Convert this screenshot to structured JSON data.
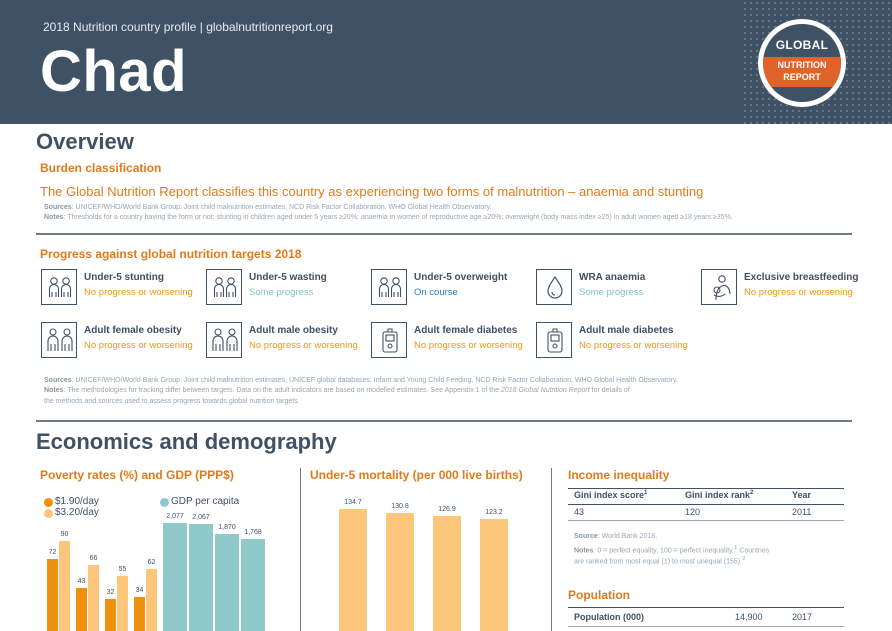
{
  "header": {
    "subtitle": "2018 Nutrition country profile  |  globalnutritionreport.org",
    "country": "Chad",
    "logo": {
      "top": "GLOBAL",
      "line1": "NUTRITION",
      "line2": "REPORT"
    }
  },
  "overview": {
    "heading": "Overview",
    "burden_heading": "Burden classification",
    "burden_text": "The Global Nutrition Report classifies this country as experiencing two forms of malnutrition – anaemia and stunting",
    "sources_label": "Sources",
    "sources_text": ": UNICEF/WHO/World Bank Group: Joint child malnutrition estimates, NCD Risk Factor Collaboration, WHO Global Health Observatory.",
    "notes_label": "Notes",
    "notes_text": ": Thresholds for a country having the form or not: stunting in children aged under 5 years ≥20%; anaemia in women of reproductive age ≥20%; overweight (body mass index ≥25) in adult women aged ≥18 years ≥35%."
  },
  "progress": {
    "heading": "Progress against global nutrition targets 2018",
    "targets": [
      {
        "label": "Under-5 stunting",
        "status": "No progress or worsening",
        "status_color": "#f0960f",
        "icon": "children-icon"
      },
      {
        "label": "Under-5 wasting",
        "status": "Some progress",
        "status_color": "#7fc4c8",
        "icon": "children-icon"
      },
      {
        "label": "Under-5 overweight",
        "status": "On course",
        "status_color": "#2a7fbf",
        "icon": "children-icon"
      },
      {
        "label": "WRA anaemia",
        "status": "Some progress",
        "status_color": "#7fc4c8",
        "icon": "blood-drop-icon"
      },
      {
        "label": "Exclusive breastfeeding",
        "status": "No progress or worsening",
        "status_color": "#f0960f",
        "icon": "breastfeeding-icon"
      },
      {
        "label": "Adult female obesity",
        "status": "No progress or worsening",
        "status_color": "#f0960f",
        "icon": "adults-icon"
      },
      {
        "label": "Adult male obesity",
        "status": "No progress or worsening",
        "status_color": "#f0960f",
        "icon": "adults-icon"
      },
      {
        "label": "Adult female diabetes",
        "status": "No progress or worsening",
        "status_color": "#f0960f",
        "icon": "glucose-meter-icon"
      },
      {
        "label": "Adult male diabetes",
        "status": "No progress or worsening",
        "status_color": "#f0960f",
        "icon": "glucose-meter-icon"
      }
    ],
    "sources_label": "Sources",
    "sources_text": ": UNICEF/WHO/World Bank Group: Joint child malnutrition estimates, UNICEF global databases: Infant and Young Child Feeding, NCD Risk Factor Collaboration, WHO Global Health Observatory.",
    "notes_label": "Notes",
    "notes_text_1": ": The methodologies for tracking differ between targets. Data on the adult indicators are based on modelled estimates. See Appendix 1 of the ",
    "notes_italic": "2018 Global Nutrition Report",
    "notes_text_2": " for details of",
    "notes_text_3": "the methods and sources used to assess progress towards global nutrition targets."
  },
  "economics": {
    "heading": "Economics and demography",
    "poverty": {
      "heading": "Poverty rates (%) and GDP (PPP$)",
      "legend_190": "$1.90/day",
      "legend_320": "$3.20/day",
      "legend_gdp": "GDP per capita"
    },
    "mortality": {
      "heading": "Under-5 mortality (per 000 live births)"
    },
    "inequality": {
      "heading": "Income inequality",
      "col1": "Gini index score",
      "col1_sup": "1",
      "col2": "Gini index rank",
      "col2_sup": "2",
      "col3": "Year",
      "val1": "43",
      "val2": "120",
      "val3": "2011",
      "source_label": "Source",
      "source_text": ": World Bank 2018.",
      "notes_label": "Notes",
      "notes_text_1": ": 0 = perfect equality, 100 = perfect inequality.",
      "notes_sup_1": "1",
      "notes_text_1b": " Countries",
      "notes_text_2": "are ranked from most equal (1) to most unequal (155).",
      "notes_sup_2": "2"
    },
    "population": {
      "heading": "Population",
      "label": "Population (000)",
      "value": "14,900",
      "year": "2017"
    }
  },
  "colors": {
    "header_bg": "#3f5165",
    "orange": "#e07a1b",
    "bar_190": "#f0900f",
    "bar_320": "#fcc77a",
    "bar_gdp": "#8fc9c9",
    "bar_mortality": "#fcc77a"
  },
  "chart_data": [
    {
      "type": "bar",
      "title": "Poverty rates (%) and GDP (PPP$)",
      "series": [
        {
          "name": "$1.90/day",
          "values": [
            72,
            43,
            32,
            34
          ]
        },
        {
          "name": "$3.20/day",
          "values": [
            90,
            66,
            55,
            62
          ]
        }
      ],
      "value_labels_190": [
        "72",
        "43",
        "32",
        "34"
      ],
      "value_labels_320": [
        "90",
        "66",
        "55",
        "62"
      ]
    },
    {
      "type": "bar",
      "series": [
        {
          "name": "GDP per capita",
          "values": [
            2077,
            2067,
            1870,
            1768
          ]
        }
      ],
      "value_labels": [
        "2,077",
        "2,067",
        "1,870",
        "1,768"
      ]
    },
    {
      "type": "bar",
      "title": "Under-5 mortality (per 000 live births)",
      "series": [
        {
          "values": [
            134.7,
            130.8,
            126.9,
            123.2
          ]
        }
      ],
      "value_labels": [
        "134.7",
        "130.8",
        "126.9",
        "123.2"
      ]
    }
  ]
}
